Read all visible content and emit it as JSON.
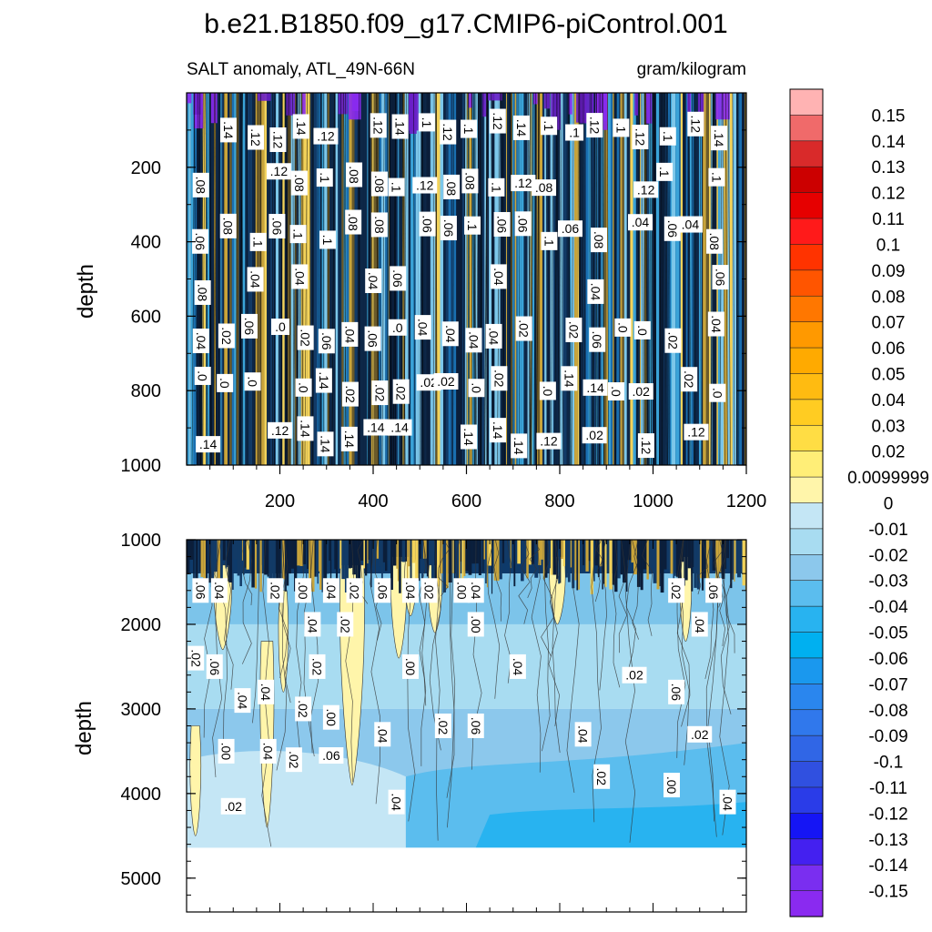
{
  "title": "b.e21.B1850.f09_g17.CMIP6-piControl.001",
  "chart_data": [
    {
      "type": "heatmap",
      "panel": "upper",
      "left_label": "SALT anomaly, ATL_49N-66N",
      "right_label": "gram/kilogram",
      "ylabel": "depth",
      "xlabel": "",
      "xlim": [
        0,
        1200
      ],
      "ylim": [
        0,
        1000
      ],
      "y_reversed": true,
      "xticks": [
        "200",
        "400",
        "600",
        "800",
        "1000",
        "1200"
      ],
      "yticks": [
        "200",
        "400",
        "600",
        "800",
        "1000"
      ],
      "contour_labels": [
        ".14",
        ".12",
        ".1",
        ".08",
        ".06",
        ".04",
        ".02",
        ".0"
      ],
      "description_values": "strongly banded in time; values range about -0.15 to 0.04, fresh (blue/purple) near surface"
    },
    {
      "type": "heatmap",
      "panel": "lower",
      "ylabel": "depth",
      "xlabel": "",
      "xlim": [
        0,
        1200
      ],
      "ylim": [
        1000,
        5400
      ],
      "y_reversed": true,
      "yticks": [
        "1000",
        "2000",
        "3000",
        "4000",
        "5000"
      ],
      "ocean_bottom": 4640,
      "contour_labels": [
        ".06",
        ".04",
        ".02",
        ".00",
        ".04",
        ".02"
      ]
    }
  ],
  "colorbar": {
    "labels": [
      "0.15",
      "0.14",
      "0.13",
      "0.12",
      "0.11",
      "0.1",
      "0.09",
      "0.08",
      "0.07",
      "0.06",
      "0.05",
      "0.04",
      "0.03",
      "0.02",
      "0.0099999",
      "0",
      "-0.01",
      "-0.02",
      "-0.03",
      "-0.04",
      "-0.05",
      "-0.06",
      "-0.07",
      "-0.08",
      "-0.09",
      "-0.1",
      "-0.11",
      "-0.12",
      "-0.13",
      "-0.14",
      "-0.15"
    ],
    "colors": [
      "#ffb3b3",
      "#f06a6a",
      "#d92a2a",
      "#cc0000",
      "#e60000",
      "#ff1a1a",
      "#ff3300",
      "#ff5500",
      "#ff7700",
      "#ff9900",
      "#ffaa00",
      "#ffbb11",
      "#ffcc22",
      "#ffdd44",
      "#ffee77",
      "#fff5aa",
      "#c4e6f5",
      "#a8dcf1",
      "#8cc8ec",
      "#5bbdee",
      "#28b3f0",
      "#00b0f0",
      "#1a98ee",
      "#2a86ee",
      "#3078ec",
      "#3066e6",
      "#3050e0",
      "#2a3ce8",
      "#1515f5",
      "#4420f0",
      "#7a2ef0",
      "#8a2af0"
    ]
  }
}
